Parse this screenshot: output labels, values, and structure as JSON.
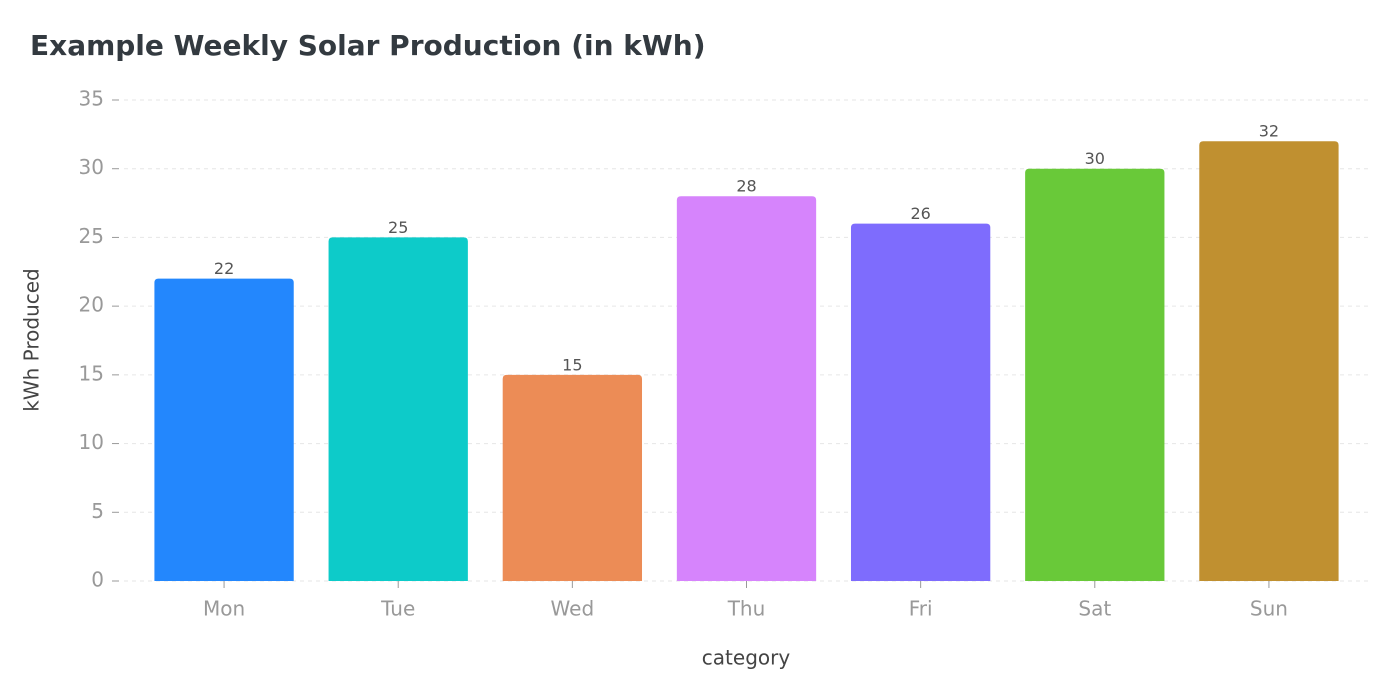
{
  "chart_data": {
    "type": "bar",
    "title": "Example Weekly Solar Production (in kWh)",
    "x_label": "category",
    "y_label": "kWh Produced",
    "categories": [
      "Mon",
      "Tue",
      "Wed",
      "Thu",
      "Fri",
      "Sat",
      "Sun"
    ],
    "values": [
      22,
      25,
      15,
      28,
      26,
      30,
      32
    ],
    "colors": [
      "#2387fd",
      "#0dcbc9",
      "#ec8c56",
      "#d684fc",
      "#7e6cfd",
      "#69c939",
      "#c09030"
    ],
    "ylim": [
      0,
      35
    ],
    "yticks": [
      0,
      5,
      10,
      15,
      20,
      25,
      30,
      35
    ],
    "grid": true
  }
}
